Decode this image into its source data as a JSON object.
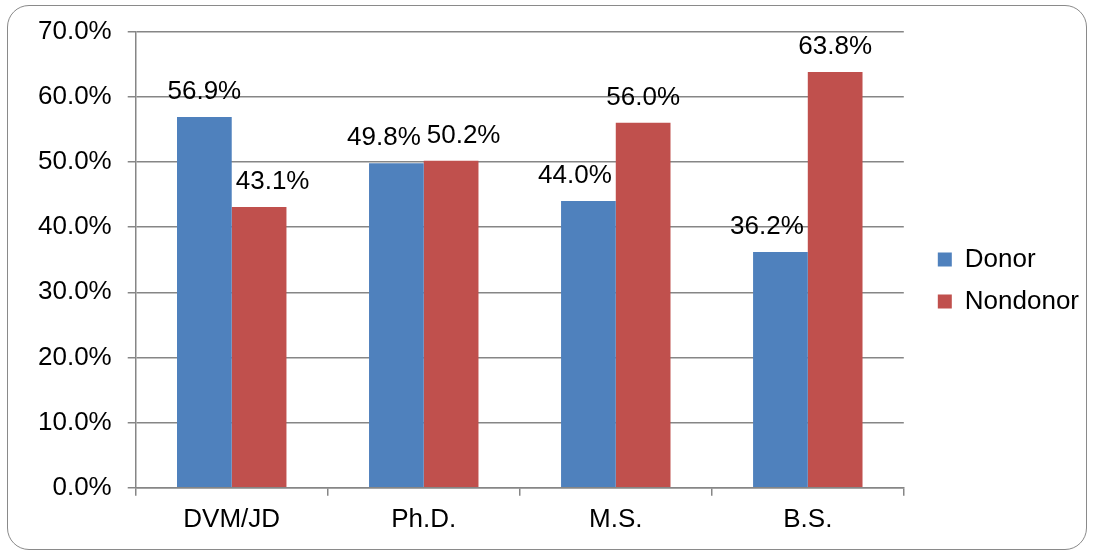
{
  "chart_data": {
    "type": "bar",
    "categories": [
      "DVM/JD",
      "Ph.D.",
      "M.S.",
      "B.S."
    ],
    "series": [
      {
        "name": "Donor",
        "color": "#4f81bd",
        "values": [
          56.9,
          49.8,
          44.0,
          36.2
        ],
        "value_labels": [
          "56.9%",
          "49.8%",
          "44.0%",
          "36.2%"
        ]
      },
      {
        "name": "Nondonor",
        "color": "#c0504d",
        "values": [
          43.1,
          50.2,
          56.0,
          63.8
        ],
        "value_labels": [
          "43.1%",
          "50.2%",
          "56.0%",
          "63.8%"
        ]
      }
    ],
    "ylim": [
      0,
      70
    ],
    "yticks": [
      {
        "value": 0,
        "label": "0.0%"
      },
      {
        "value": 10,
        "label": "10.0%"
      },
      {
        "value": 20,
        "label": "20.0%"
      },
      {
        "value": 30,
        "label": "30.0%"
      },
      {
        "value": 40,
        "label": "40.0%"
      },
      {
        "value": 50,
        "label": "50.0%"
      },
      {
        "value": 60,
        "label": "60.0%"
      },
      {
        "value": 70,
        "label": "70.0%"
      }
    ],
    "grid": "y",
    "legend": "right"
  }
}
